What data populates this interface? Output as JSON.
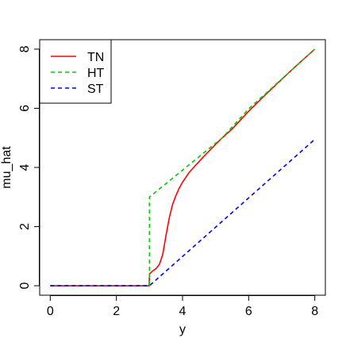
{
  "chart_data": {
    "type": "line",
    "title": "",
    "xlabel": "y",
    "ylabel": "mu_hat",
    "xlim": [
      -0.32,
      8.32
    ],
    "ylim": [
      -0.32,
      8.32
    ],
    "xticks": [
      0,
      2,
      4,
      6,
      8
    ],
    "yticks": [
      0,
      2,
      4,
      6,
      8
    ],
    "grid": false,
    "legend_position": "top-left",
    "series": [
      {
        "name": "TN",
        "color": "#ff0000",
        "dash": "solid",
        "points": [
          [
            0,
            0
          ],
          [
            1,
            0
          ],
          [
            2,
            0
          ],
          [
            2.99,
            0
          ],
          [
            3.0,
            0.4
          ],
          [
            3.1,
            0.5
          ],
          [
            3.2,
            0.58
          ],
          [
            3.3,
            0.72
          ],
          [
            3.4,
            1.05
          ],
          [
            3.5,
            1.7
          ],
          [
            3.6,
            2.3
          ],
          [
            3.7,
            2.75
          ],
          [
            3.8,
            3.05
          ],
          [
            3.9,
            3.3
          ],
          [
            4.0,
            3.5
          ],
          [
            4.2,
            3.83
          ],
          [
            4.4,
            4.08
          ],
          [
            4.6,
            4.32
          ],
          [
            4.8,
            4.55
          ],
          [
            5.0,
            4.78
          ],
          [
            5.2,
            5.0
          ],
          [
            5.5,
            5.3
          ],
          [
            6.0,
            5.9
          ],
          [
            6.5,
            6.45
          ],
          [
            7.0,
            6.98
          ],
          [
            7.5,
            7.5
          ],
          [
            8.0,
            8.0
          ]
        ]
      },
      {
        "name": "HT",
        "color": "#00cc00",
        "dash": "dashed",
        "points": [
          [
            0,
            0
          ],
          [
            3.0,
            0
          ],
          [
            3.0,
            3.0
          ],
          [
            5.2,
            5.0
          ],
          [
            6.0,
            5.98
          ],
          [
            8.0,
            8.0
          ]
        ]
      },
      {
        "name": "ST",
        "color": "#0000ff",
        "dash": "dashed",
        "points": [
          [
            0,
            0
          ],
          [
            3.0,
            0
          ],
          [
            8.0,
            4.95
          ]
        ]
      }
    ]
  }
}
